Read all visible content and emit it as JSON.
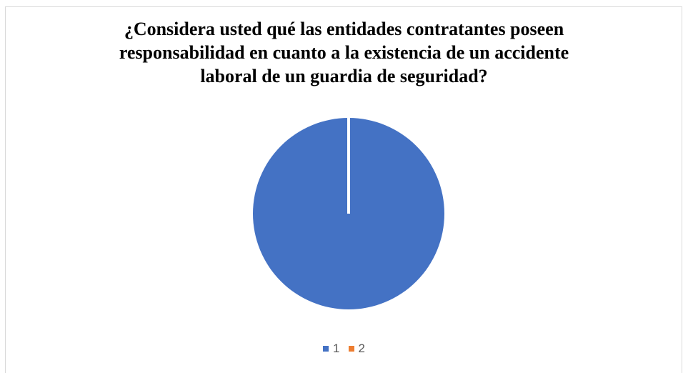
{
  "chart_data": {
    "type": "pie",
    "title_lines": [
      "¿Considera usted qué las entidades contratantes poseen",
      "responsabilidad en cuanto a la existencia de un accidente",
      "laboral de un guardia de seguridad?"
    ],
    "categories": [
      "1",
      "2"
    ],
    "values": [
      100,
      0
    ],
    "colors": [
      "#4472c4",
      "#ed7d31"
    ],
    "legend_position": "bottom",
    "slice_border_color": "#ffffff"
  }
}
